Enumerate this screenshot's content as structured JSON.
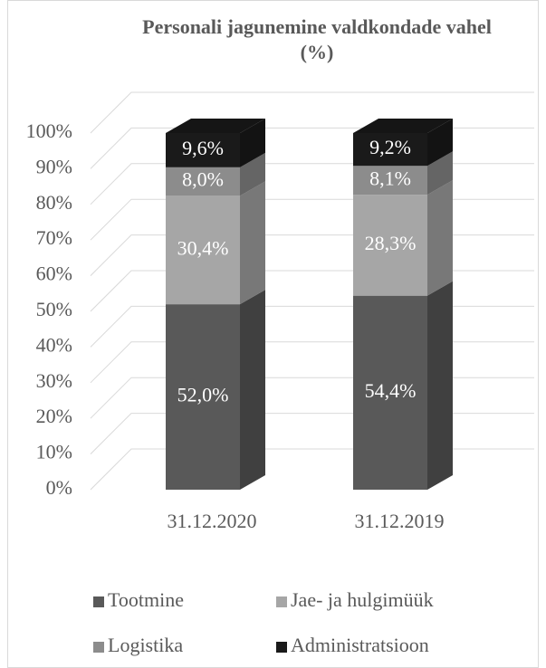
{
  "chart_data": {
    "type": "bar3d_stacked",
    "title": "Personali jagunemine valdkondade vahel (%)",
    "categories": [
      "31.12.2020",
      "31.12.2019"
    ],
    "series": [
      {
        "name": "Tootmine",
        "color": "#595959",
        "values": [
          52.0,
          54.4
        ],
        "value_labels": [
          "52,0%",
          "54,4%"
        ]
      },
      {
        "name": "Jae- ja hulgimüük",
        "color": "#a6a6a6",
        "values": [
          30.4,
          28.3
        ],
        "value_labels": [
          "30,4%",
          "28,3%"
        ]
      },
      {
        "name": "Logistika",
        "color": "#8c8c8c",
        "values": [
          8.0,
          8.1
        ],
        "value_labels": [
          "8,0%",
          "8,1%"
        ]
      },
      {
        "name": "Administratsioon",
        "color": "#1a1a1a",
        "values": [
          9.6,
          9.2
        ],
        "value_labels": [
          "9,6%",
          "9,2%"
        ]
      }
    ],
    "ylim": [
      0,
      100
    ],
    "yticks": [
      {
        "value": 0,
        "label": "0%"
      },
      {
        "value": 10,
        "label": "10%"
      },
      {
        "value": 20,
        "label": "20%"
      },
      {
        "value": 30,
        "label": "30%"
      },
      {
        "value": 40,
        "label": "40%"
      },
      {
        "value": 50,
        "label": "50%"
      },
      {
        "value": 60,
        "label": "60%"
      },
      {
        "value": 70,
        "label": "70%"
      },
      {
        "value": 80,
        "label": "80%"
      },
      {
        "value": 90,
        "label": "90%"
      },
      {
        "value": 100,
        "label": "100%"
      }
    ],
    "grid": true,
    "legend": "bottom"
  }
}
